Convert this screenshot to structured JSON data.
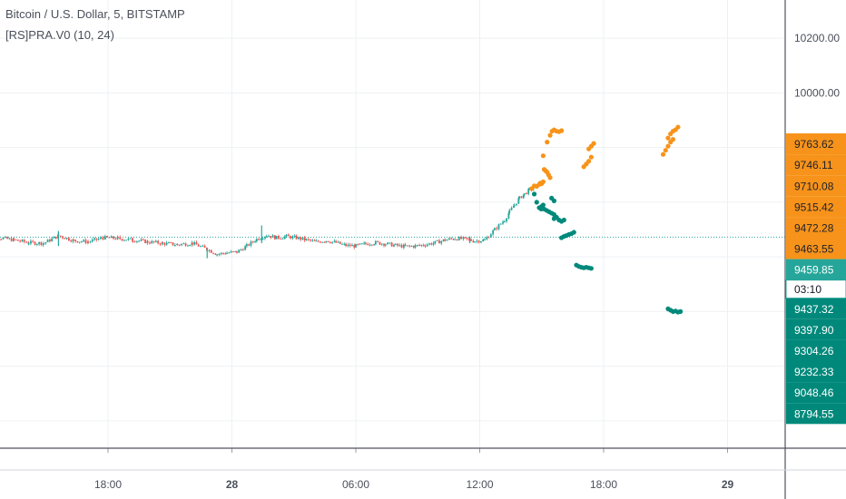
{
  "header": {
    "title": "Bitcoin / U.S. Dollar, 5, BITSTAMP",
    "indicator": "[RS]PRA.V0 (10, 24)"
  },
  "chart_data": {
    "type": "candlestick",
    "title": "Bitcoin / U.S. Dollar, 5, BITSTAMP",
    "ylim": [
      8700,
      10340
    ],
    "xlim": [
      -0.25,
      1.08
    ],
    "x_ticks": [
      {
        "label": "18:00",
        "t": 0.0
      },
      {
        "label": "28",
        "t": 0.25
      },
      {
        "label": "06:00",
        "t": 0.5
      },
      {
        "label": "12:00",
        "t": 0.75
      },
      {
        "label": "18:00",
        "t": 1.0
      },
      {
        "label": "29",
        "t": 1.25
      }
    ],
    "y_ticks": [
      8800,
      9000,
      9200,
      9400,
      9600,
      9800,
      10000,
      10200
    ],
    "y_tick_labels": {
      "10200": "10200.00",
      "10000": "10000.00"
    },
    "last_price": 9459.85,
    "countdown": "03:10",
    "price_line": 9472.28,
    "colors": {
      "up": "#26a69a",
      "down": "#ef5350",
      "resistance": "#f7931a",
      "support": "#00897b",
      "price_line": "#26a69a"
    },
    "price_path": [
      [
        -0.25,
        9440
      ],
      [
        -0.22,
        9470
      ],
      [
        -0.19,
        9462
      ],
      [
        -0.16,
        9452
      ],
      [
        -0.13,
        9450
      ],
      [
        -0.1,
        9478
      ],
      [
        -0.07,
        9460
      ],
      [
        -0.04,
        9455
      ],
      [
        -0.01,
        9470
      ],
      [
        0.02,
        9468
      ],
      [
        0.05,
        9462
      ],
      [
        0.08,
        9455
      ],
      [
        0.11,
        9450
      ],
      [
        0.14,
        9445
      ],
      [
        0.17,
        9450
      ],
      [
        0.2,
        9428
      ],
      [
        0.22,
        9410
      ],
      [
        0.24,
        9415
      ],
      [
        0.26,
        9418
      ],
      [
        0.28,
        9440
      ],
      [
        0.3,
        9465
      ],
      [
        0.32,
        9480
      ],
      [
        0.34,
        9470
      ],
      [
        0.36,
        9475
      ],
      [
        0.38,
        9470
      ],
      [
        0.4,
        9462
      ],
      [
        0.42,
        9455
      ],
      [
        0.44,
        9460
      ],
      [
        0.46,
        9452
      ],
      [
        0.48,
        9442
      ],
      [
        0.5,
        9440
      ],
      [
        0.52,
        9448
      ],
      [
        0.54,
        9452
      ],
      [
        0.56,
        9448
      ],
      [
        0.58,
        9442
      ],
      [
        0.6,
        9438
      ],
      [
        0.62,
        9440
      ],
      [
        0.64,
        9445
      ],
      [
        0.66,
        9452
      ],
      [
        0.68,
        9462
      ],
      [
        0.7,
        9468
      ],
      [
        0.72,
        9465
      ],
      [
        0.74,
        9458
      ],
      [
        0.76,
        9462
      ],
      [
        0.78,
        9500
      ],
      [
        0.8,
        9535
      ],
      [
        0.81,
        9565
      ],
      [
        0.82,
        9590
      ],
      [
        0.83,
        9615
      ],
      [
        0.84,
        9630
      ],
      [
        0.85,
        9645
      ],
      [
        0.86,
        9655
      ],
      [
        0.87,
        9665
      ]
    ],
    "spikes": [
      [
        -0.1,
        9495,
        9440
      ],
      [
        0.2,
        9432,
        9395
      ],
      [
        0.31,
        9515,
        9450
      ],
      [
        0.73,
        9475,
        9450
      ]
    ],
    "resistance_series": [
      {
        "x": [
          0.855,
          0.86,
          0.865,
          0.87,
          0.872,
          0.875,
          0.878
        ],
        "y": [
          9650,
          9660,
          9658,
          9665,
          9670,
          9668,
          9675
        ]
      },
      {
        "x": [
          0.878
        ],
        "y": [
          9770
        ]
      },
      {
        "x": [
          0.88,
          0.883,
          0.886,
          0.889,
          0.892
        ],
        "y": [
          9720,
          9715,
          9710,
          9700,
          9690
        ]
      },
      {
        "x": [
          0.886
        ],
        "y": [
          9820
        ]
      },
      {
        "x": [
          0.892,
          0.896,
          0.9,
          0.905,
          0.91,
          0.915
        ],
        "y": [
          9845,
          9860,
          9865,
          9860,
          9858,
          9862
        ]
      },
      {
        "x": [
          0.96,
          0.965,
          0.97,
          0.975
        ],
        "y": [
          9730,
          9740,
          9750,
          9765
        ]
      },
      {
        "x": [
          0.97,
          0.975,
          0.98
        ],
        "y": [
          9795,
          9805,
          9815
        ]
      },
      {
        "x": [
          1.12,
          1.125,
          1.13,
          1.135,
          1.14
        ],
        "y": [
          9775,
          9790,
          9805,
          9820,
          9830
        ]
      },
      {
        "x": [
          1.13,
          1.135,
          1.14,
          1.145,
          1.15
        ],
        "y": [
          9835,
          9850,
          9860,
          9865,
          9875
        ]
      }
    ],
    "support_series": [
      {
        "x": [
          0.86,
          0.865,
          0.87,
          0.874,
          0.878
        ],
        "y": [
          9630,
          9600,
          9580,
          9575,
          9590
        ]
      },
      {
        "x": [
          0.875,
          0.88,
          0.885,
          0.89,
          0.895,
          0.9
        ],
        "y": [
          9585,
          9575,
          9570,
          9565,
          9560,
          9555
        ]
      },
      {
        "x": [
          0.9,
          0.905,
          0.91,
          0.915,
          0.92
        ],
        "y": [
          9540,
          9545,
          9535,
          9530,
          9535
        ]
      },
      {
        "x": [
          0.895,
          0.9
        ],
        "y": [
          9615,
          9605
        ]
      },
      {
        "x": [
          0.915,
          0.92,
          0.925,
          0.93,
          0.935,
          0.94
        ],
        "y": [
          9470,
          9475,
          9478,
          9482,
          9485,
          9490
        ]
      },
      {
        "x": [
          0.945,
          0.95,
          0.955,
          0.96,
          0.965,
          0.97,
          0.975
        ],
        "y": [
          9370,
          9365,
          9362,
          9360,
          9362,
          9360,
          9358
        ]
      },
      {
        "x": [
          1.13,
          1.135,
          1.14,
          1.145,
          1.15,
          1.155
        ],
        "y": [
          9210,
          9205,
          9200,
          9202,
          9198,
          9200
        ]
      }
    ],
    "axis_badges": [
      {
        "label": "9763.62",
        "kind": "resistance"
      },
      {
        "label": "9746.11",
        "kind": "resistance"
      },
      {
        "label": "9710.08",
        "kind": "resistance"
      },
      {
        "label": "9515.42",
        "kind": "resistance"
      },
      {
        "label": "9472.28",
        "kind": "resistance"
      },
      {
        "label": "9463.55",
        "kind": "resistance"
      },
      {
        "label": "9459.85",
        "kind": "price"
      },
      {
        "label": "03:10",
        "kind": "countdown"
      },
      {
        "label": "9437.32",
        "kind": "support"
      },
      {
        "label": "9397.90",
        "kind": "support"
      },
      {
        "label": "9304.26",
        "kind": "support"
      },
      {
        "label": "9232.33",
        "kind": "support"
      },
      {
        "label": "9048.46",
        "kind": "support"
      },
      {
        "label": "8794.55",
        "kind": "support"
      }
    ]
  }
}
